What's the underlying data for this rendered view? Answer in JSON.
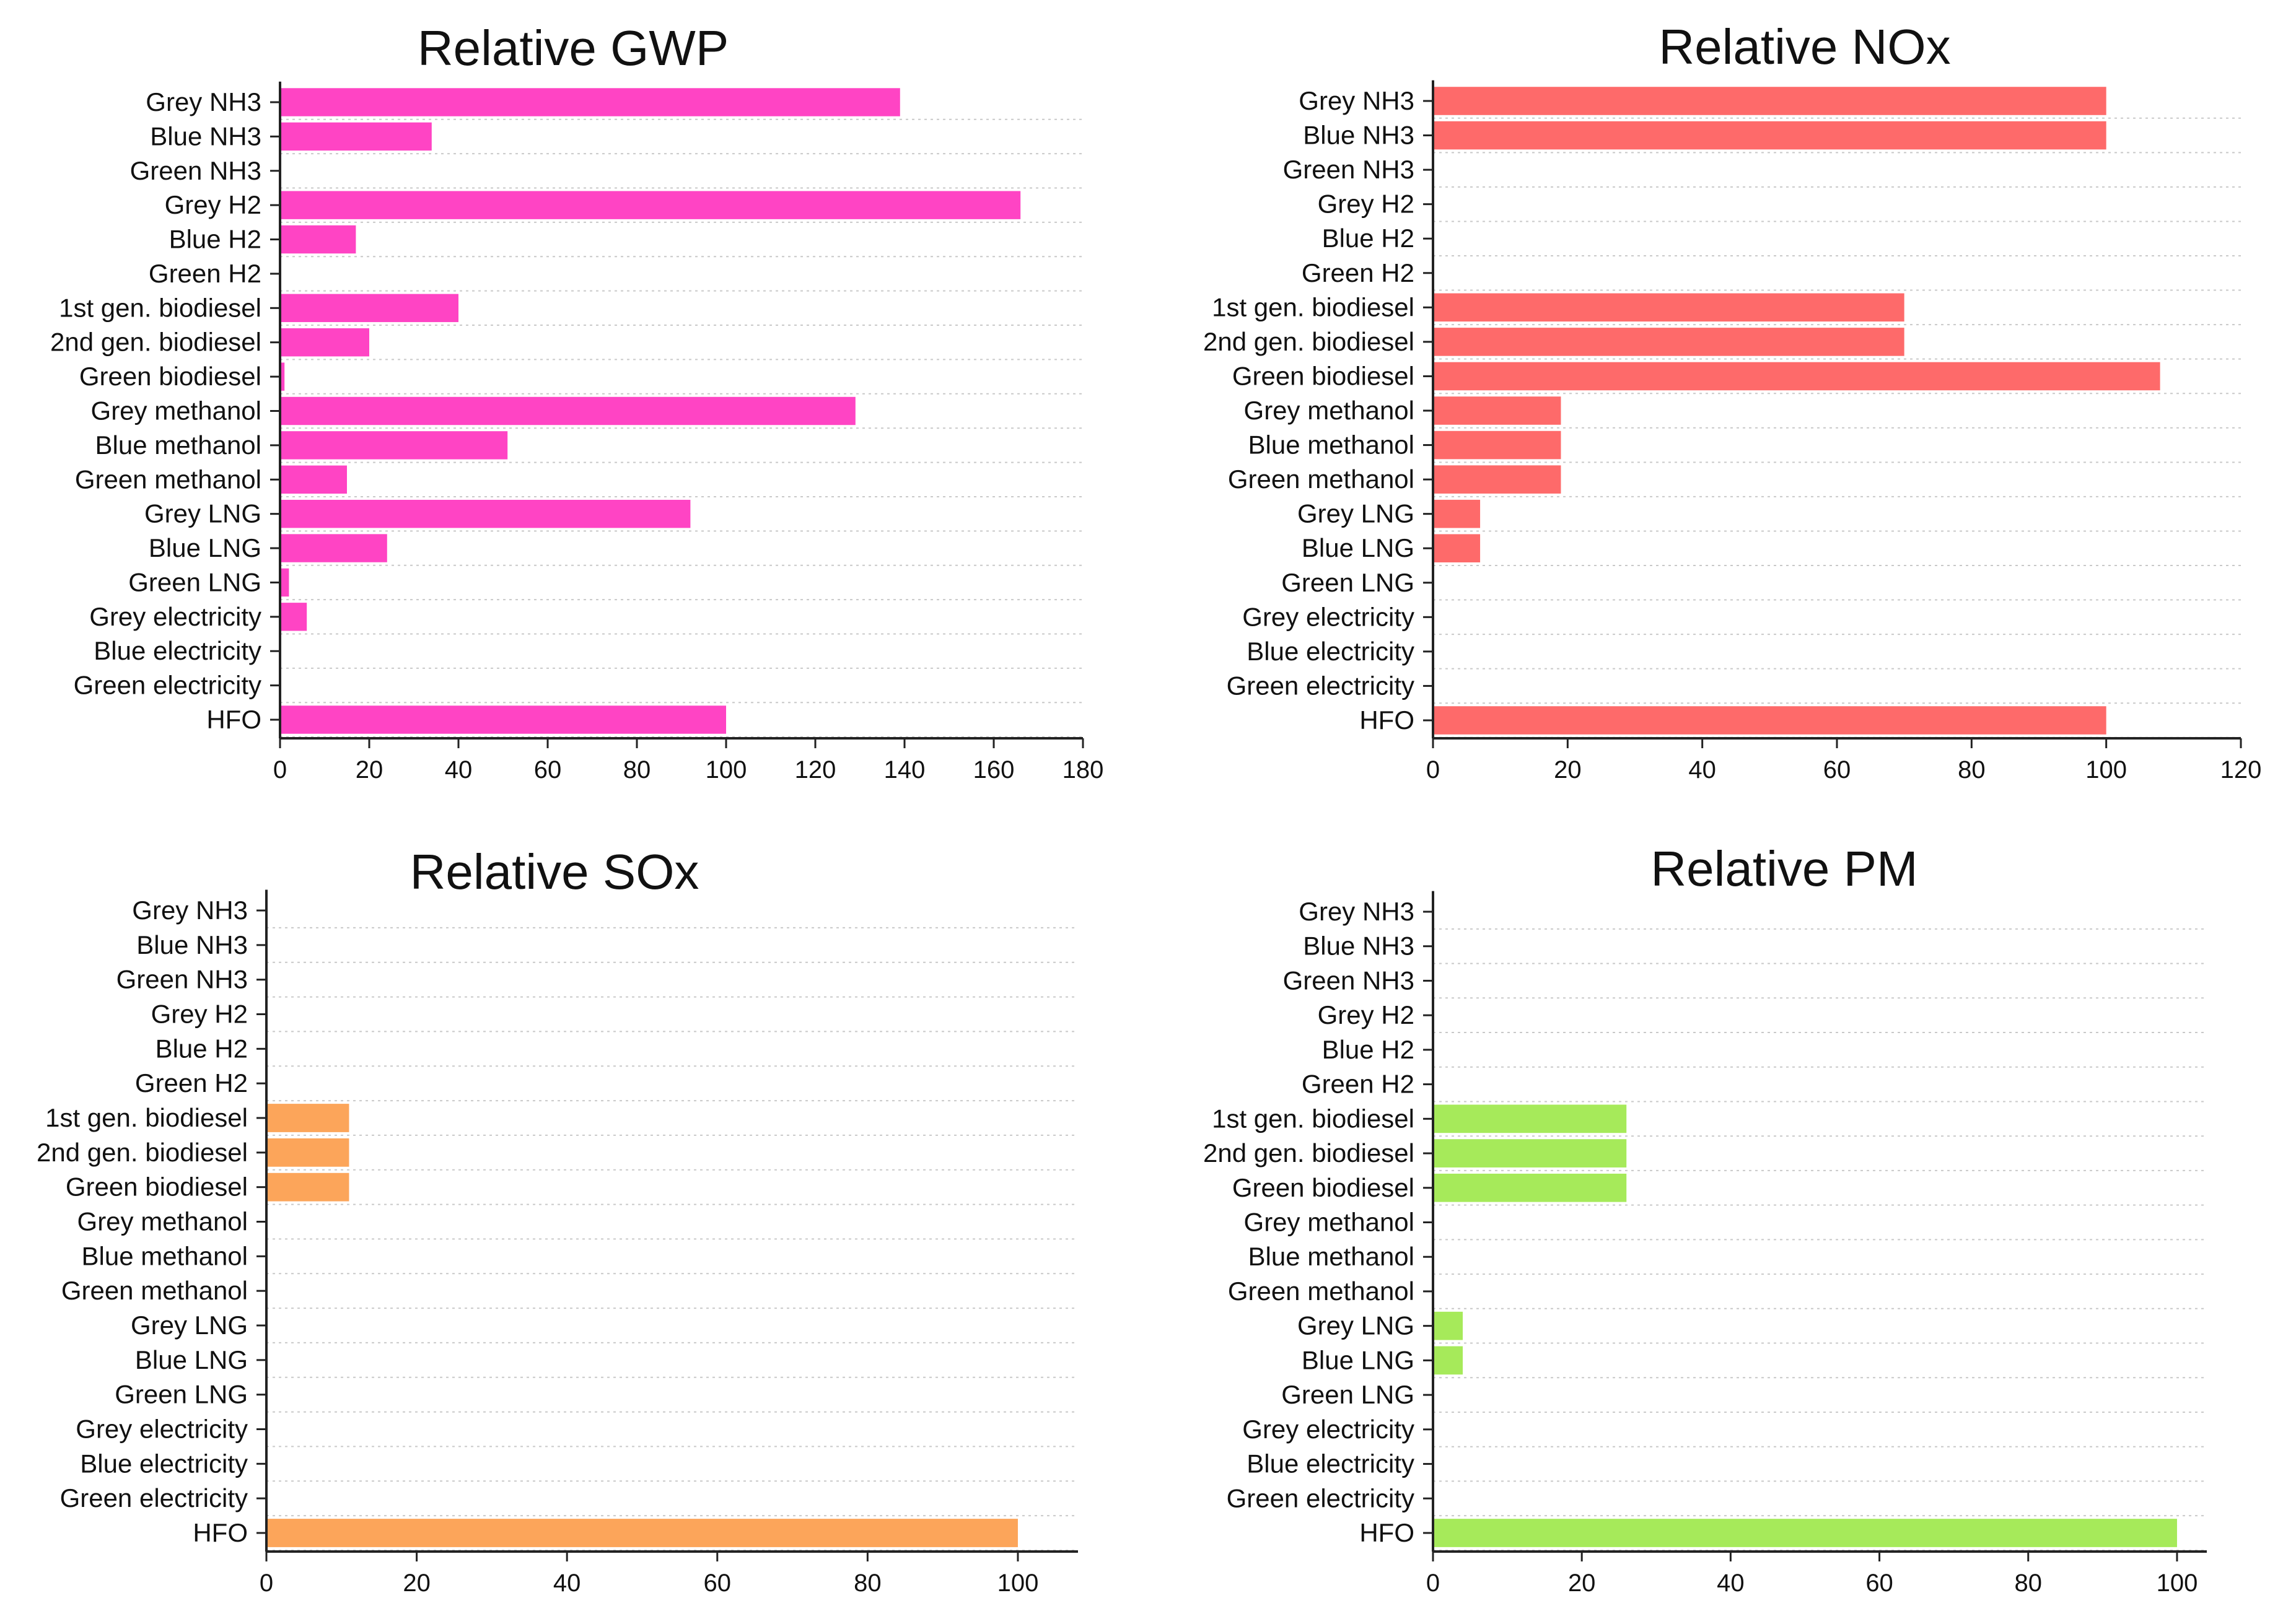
{
  "chart_data": [
    {
      "type": "bar",
      "orientation": "horizontal",
      "title": "Relative GWP",
      "color": "#ff44c4",
      "categories": [
        "Grey NH3",
        "Blue NH3",
        "Green NH3",
        "Grey H2",
        "Blue H2",
        "Green H2",
        "1st gen. biodiesel",
        "2nd gen. biodiesel",
        "Green biodiesel",
        "Grey methanol",
        "Blue methanol",
        "Green methanol",
        "Grey LNG",
        "Blue LNG",
        "Green LNG",
        "Grey electricity",
        "Blue electricity",
        "Green electricity",
        "HFO"
      ],
      "values": [
        139,
        34,
        0,
        166,
        17,
        0,
        40,
        20,
        1,
        129,
        51,
        15,
        92,
        24,
        2,
        6,
        0,
        0,
        100
      ],
      "xlim": [
        0,
        180
      ],
      "xticks": [
        "0",
        "20",
        "40",
        "60",
        "80",
        "100",
        "120",
        "140",
        "160",
        "180"
      ],
      "grid": true
    },
    {
      "type": "bar",
      "orientation": "horizontal",
      "title": "Relative NOx",
      "color": "#fe6a6a",
      "categories": [
        "Grey NH3",
        "Blue NH3",
        "Green NH3",
        "Grey H2",
        "Blue H2",
        "Green H2",
        "1st gen. biodiesel",
        "2nd gen. biodiesel",
        "Green biodiesel",
        "Grey methanol",
        "Blue methanol",
        "Green methanol",
        "Grey LNG",
        "Blue LNG",
        "Green LNG",
        "Grey electricity",
        "Blue electricity",
        "Green electricity",
        "HFO"
      ],
      "values": [
        100,
        100,
        0,
        0,
        0,
        0,
        70,
        70,
        108,
        19,
        19,
        19,
        7,
        7,
        0,
        0,
        0,
        0,
        100
      ],
      "xlim": [
        0,
        120
      ],
      "xticks": [
        "0",
        "20",
        "40",
        "60",
        "80",
        "100",
        "120"
      ],
      "grid": true
    },
    {
      "type": "bar",
      "orientation": "horizontal",
      "title": "Relative SOx",
      "color": "#fca55a",
      "categories": [
        "Grey NH3",
        "Blue NH3",
        "Green NH3",
        "Grey H2",
        "Blue H2",
        "Green H2",
        "1st gen. biodiesel",
        "2nd gen. biodiesel",
        "Green biodiesel",
        "Grey methanol",
        "Blue methanol",
        "Green methanol",
        "Grey LNG",
        "Blue LNG",
        "Green LNG",
        "Grey electricity",
        "Blue electricity",
        "Green electricity",
        "HFO"
      ],
      "values": [
        0,
        0,
        0,
        0,
        0,
        0,
        11,
        11,
        11,
        0,
        0,
        0,
        0,
        0,
        0,
        0,
        0,
        0,
        100
      ],
      "xlim": [
        0,
        108
      ],
      "xticks": [
        "0",
        "20",
        "40",
        "60",
        "80",
        "100"
      ],
      "grid": true
    },
    {
      "type": "bar",
      "orientation": "horizontal",
      "title": "Relative PM",
      "color": "#a6ea5a",
      "categories": [
        "Grey NH3",
        "Blue NH3",
        "Green NH3",
        "Grey H2",
        "Blue H2",
        "Green H2",
        "1st gen. biodiesel",
        "2nd gen. biodiesel",
        "Green biodiesel",
        "Grey methanol",
        "Blue methanol",
        "Green methanol",
        "Grey LNG",
        "Blue LNG",
        "Green LNG",
        "Grey electricity",
        "Blue electricity",
        "Green electricity",
        "HFO"
      ],
      "values": [
        0,
        0,
        0,
        0,
        0,
        0,
        26,
        26,
        26,
        0,
        0,
        0,
        4,
        4,
        0,
        0,
        0,
        0,
        100
      ],
      "xlim": [
        0,
        104
      ],
      "xticks": [
        "0",
        "20",
        "40",
        "60",
        "80",
        "100"
      ],
      "grid": true
    }
  ]
}
